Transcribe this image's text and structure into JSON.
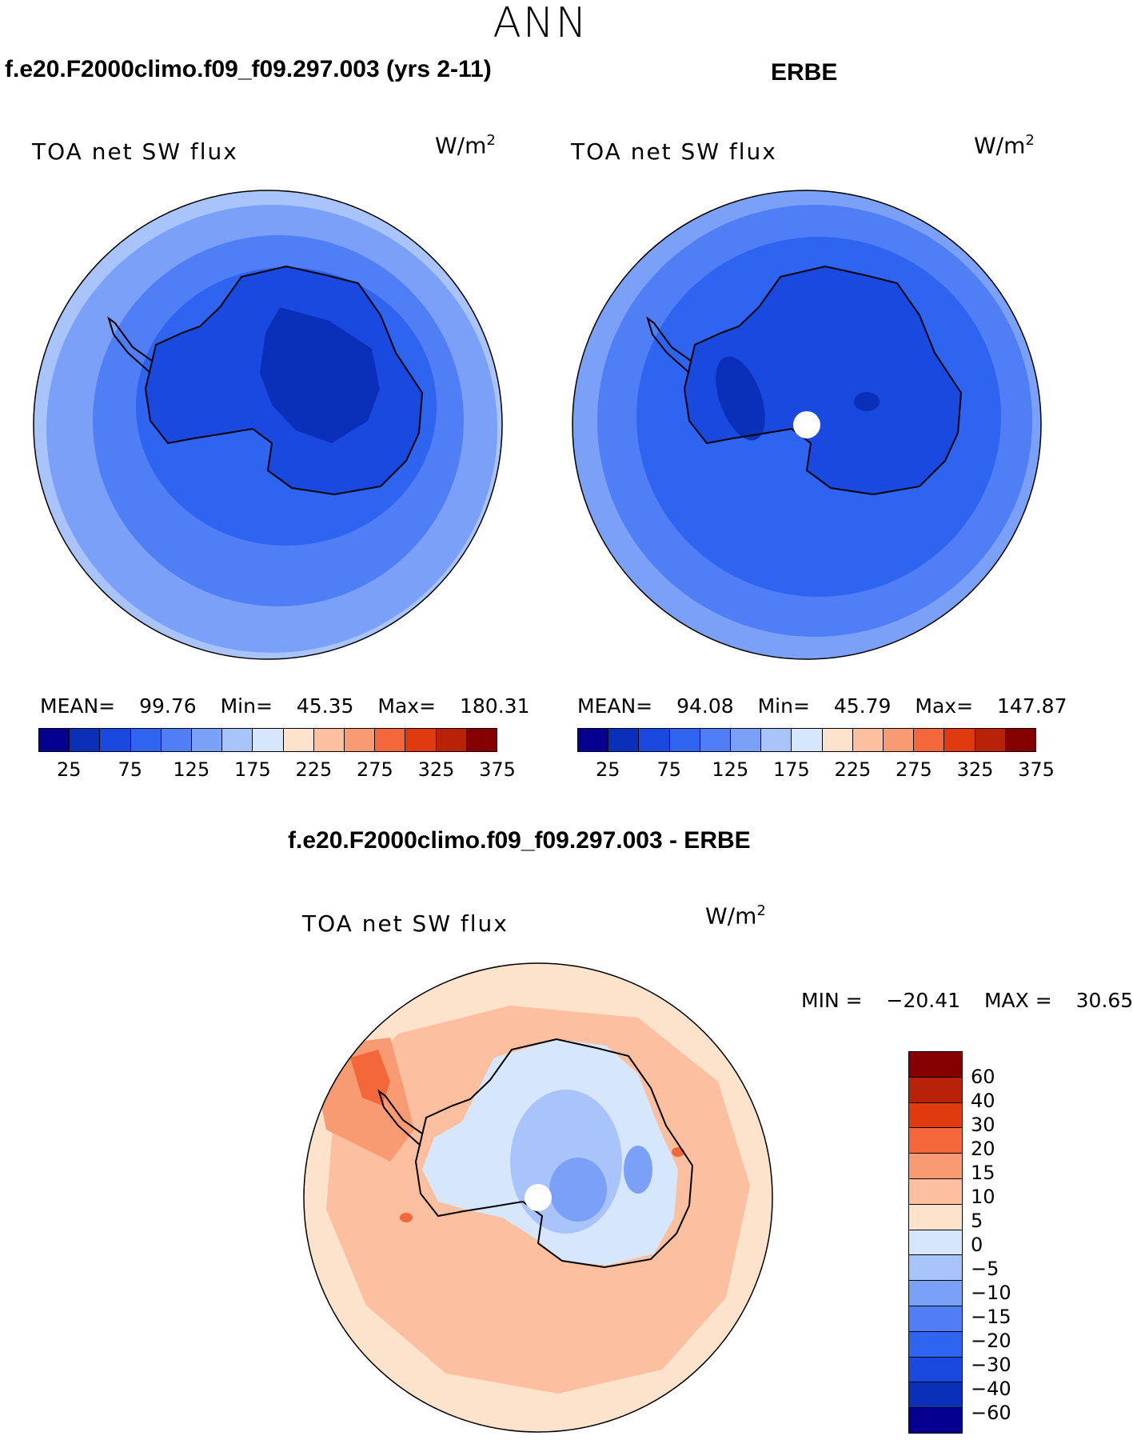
{
  "figure": {
    "title": "ANN",
    "variable": "TOA net SW flux",
    "units": "W/m",
    "units_exp": "2"
  },
  "panels": {
    "model": {
      "title": "f.e20.F2000climo.f09_f09.297.003 (yrs 2-11)",
      "mean_label": "MEAN=",
      "mean": "99.76",
      "min_label": "Min=",
      "min": "45.35",
      "max_label": "Max=",
      "max": "180.31"
    },
    "obs": {
      "title": "ERBE",
      "mean_label": "MEAN=",
      "mean": "94.08",
      "min_label": "Min=",
      "min": "45.79",
      "max_label": "Max=",
      "max": "147.87"
    },
    "diff": {
      "title": "f.e20.F2000climo.f09_f09.297.003 - ERBE",
      "min_label": "MIN =",
      "min": "−20.41",
      "max_label": "MAX =",
      "max": "30.65"
    }
  },
  "colors": {
    "abs_scale": [
      "#05008f",
      "#0a2fb8",
      "#1a49e0",
      "#2e64f0",
      "#4f7ef5",
      "#7aa0f8",
      "#a9c4fb",
      "#d6e6fc",
      "#fde3cc",
      "#fcc0a1",
      "#f99b72",
      "#f4673b",
      "#e03a0f",
      "#b82208",
      "#850000"
    ],
    "diff_scale": [
      "#850000",
      "#b82208",
      "#e03a0f",
      "#f4673b",
      "#f99b72",
      "#fcc0a1",
      "#fde3cc",
      "#d6e6fc",
      "#a9c4fb",
      "#7aa0f8",
      "#4f7ef5",
      "#2e64f0",
      "#1a49e0",
      "#0a2fb8",
      "#05008f"
    ]
  },
  "chart_data": [
    {
      "type": "heatmap",
      "projection": "south-polar-stereographic",
      "title": "f.e20.F2000climo.f09_f09.297.003 (yrs 2-11)",
      "variable": "TOA net SW flux",
      "units": "W/m2",
      "colorbar_ticks": [
        25,
        75,
        125,
        175,
        225,
        275,
        325,
        375
      ],
      "stats": {
        "mean": 99.76,
        "min": 45.35,
        "max": 180.31
      }
    },
    {
      "type": "heatmap",
      "projection": "south-polar-stereographic",
      "title": "ERBE",
      "variable": "TOA net SW flux",
      "units": "W/m2",
      "colorbar_ticks": [
        25,
        75,
        125,
        175,
        225,
        275,
        325,
        375
      ],
      "stats": {
        "mean": 94.08,
        "min": 45.79,
        "max": 147.87
      }
    },
    {
      "type": "heatmap",
      "projection": "south-polar-stereographic",
      "title": "f.e20.F2000climo.f09_f09.297.003 - ERBE",
      "variable": "TOA net SW flux",
      "units": "W/m2",
      "colorbar_labels": [
        "60",
        "40",
        "30",
        "20",
        "15",
        "10",
        "5",
        "0",
        "−5",
        "−10",
        "−15",
        "−20",
        "−30",
        "−40",
        "−60"
      ],
      "stats": {
        "min": -20.41,
        "max": 30.65
      }
    }
  ],
  "ticks_abs": [
    "25",
    "75",
    "125",
    "175",
    "225",
    "275",
    "325",
    "375"
  ]
}
